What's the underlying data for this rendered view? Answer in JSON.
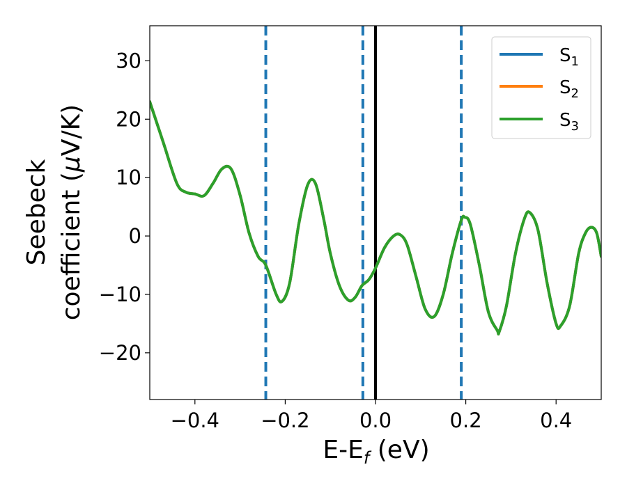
{
  "colors": {
    "s1": "#1f77b4",
    "s2": "#ff7f0e",
    "s3": "#2ca02c",
    "vertical_dashed": "#1f77b4",
    "fermi_line": "#000000"
  },
  "chart_data": {
    "type": "line",
    "title": "",
    "xlabel_main": "E-E",
    "xlabel_sub": "f",
    "xlabel_tail": " (eV)",
    "ylabel_line1": "Seebeck",
    "ylabel_line2": "coefficient  (",
    "ylabel_mu": "μ",
    "ylabel_tail": "V/K)",
    "xlim": [
      -0.5,
      0.5
    ],
    "ylim": [
      -28,
      36
    ],
    "xticks": [
      -0.4,
      -0.2,
      0.0,
      0.2,
      0.4
    ],
    "xtick_labels": [
      "−0.4",
      "−0.2",
      "0.0",
      "0.2",
      "0.4"
    ],
    "yticks": [
      -20,
      -10,
      0,
      10,
      20,
      30
    ],
    "ytick_labels": [
      "−20",
      "−10",
      "0",
      "10",
      "20",
      "30"
    ],
    "grid": false,
    "legend_position": "top-right",
    "legend": [
      {
        "main": "S",
        "sub": "1"
      },
      {
        "main": "S",
        "sub": "2"
      },
      {
        "main": "S",
        "sub": "3"
      }
    ],
    "vertical_dashed_lines": [
      -0.243,
      -0.028,
      0.19
    ],
    "vertical_solid_line": 0.0,
    "series": [
      {
        "name": "S1",
        "x": [
          -0.5,
          -0.47,
          -0.44,
          -0.42,
          -0.4,
          -0.38,
          -0.36,
          -0.34,
          -0.32,
          -0.3,
          -0.28,
          -0.26,
          -0.243,
          -0.22,
          -0.207,
          -0.19,
          -0.17,
          -0.15,
          -0.133,
          -0.115,
          -0.1,
          -0.08,
          -0.06,
          -0.045,
          -0.03,
          -0.015,
          0.0,
          0.02,
          0.04,
          0.055,
          0.07,
          0.09,
          0.11,
          0.13,
          0.15,
          0.17,
          0.19,
          0.198,
          0.21,
          0.23,
          0.25,
          0.27,
          0.274,
          0.29,
          0.31,
          0.33,
          0.342,
          0.36,
          0.38,
          0.4,
          0.41,
          0.43,
          0.45,
          0.465,
          0.478,
          0.49,
          0.5
        ],
        "y": [
          23,
          16,
          9,
          7.5,
          7.2,
          6.9,
          9,
          11.5,
          11.5,
          7,
          0.5,
          -3.5,
          -5,
          -10,
          -11.2,
          -8,
          2,
          8.8,
          9,
          3,
          -3,
          -8.5,
          -11,
          -10.5,
          -8.5,
          -7.5,
          -5.5,
          -2,
          0,
          0.2,
          -1.5,
          -7,
          -12.5,
          -13.8,
          -10,
          -3,
          2.7,
          3.2,
          2,
          -5,
          -13,
          -16.2,
          -16.4,
          -12,
          -3,
          3,
          4,
          1,
          -8,
          -15,
          -15.4,
          -12,
          -3,
          0.5,
          1.5,
          0.5,
          -3.5
        ]
      },
      {
        "name": "S2",
        "x": [
          -0.5,
          -0.47,
          -0.44,
          -0.42,
          -0.4,
          -0.38,
          -0.36,
          -0.34,
          -0.32,
          -0.3,
          -0.28,
          -0.26,
          -0.243,
          -0.22,
          -0.207,
          -0.19,
          -0.17,
          -0.15,
          -0.133,
          -0.115,
          -0.1,
          -0.08,
          -0.06,
          -0.045,
          -0.03,
          -0.015,
          0.0,
          0.02,
          0.04,
          0.055,
          0.07,
          0.09,
          0.11,
          0.13,
          0.15,
          0.17,
          0.19,
          0.198,
          0.21,
          0.23,
          0.25,
          0.27,
          0.274,
          0.29,
          0.31,
          0.33,
          0.342,
          0.36,
          0.38,
          0.4,
          0.41,
          0.43,
          0.45,
          0.465,
          0.478,
          0.49,
          0.5
        ],
        "y": [
          23,
          16,
          9,
          7.5,
          7.2,
          6.9,
          9,
          11.5,
          11.5,
          7,
          0.5,
          -3.5,
          -5,
          -10,
          -11.2,
          -8,
          2,
          8.8,
          9,
          3,
          -3,
          -8.5,
          -11,
          -10.5,
          -8.5,
          -7.5,
          -5.5,
          -2,
          0,
          0.2,
          -1.5,
          -7,
          -12.5,
          -13.8,
          -10,
          -3,
          2.7,
          3.2,
          2,
          -5,
          -13,
          -16.2,
          -16.4,
          -12,
          -3,
          3,
          4,
          1,
          -8,
          -15,
          -15.4,
          -12,
          -3,
          0.5,
          1.5,
          0.5,
          -3.5
        ]
      },
      {
        "name": "S3",
        "x": [
          -0.5,
          -0.47,
          -0.44,
          -0.42,
          -0.4,
          -0.38,
          -0.36,
          -0.34,
          -0.32,
          -0.3,
          -0.28,
          -0.26,
          -0.243,
          -0.22,
          -0.207,
          -0.19,
          -0.17,
          -0.15,
          -0.133,
          -0.115,
          -0.1,
          -0.08,
          -0.06,
          -0.045,
          -0.03,
          -0.015,
          0.0,
          0.02,
          0.04,
          0.055,
          0.07,
          0.09,
          0.11,
          0.13,
          0.15,
          0.17,
          0.19,
          0.198,
          0.21,
          0.23,
          0.25,
          0.27,
          0.274,
          0.29,
          0.31,
          0.33,
          0.342,
          0.36,
          0.38,
          0.4,
          0.41,
          0.43,
          0.45,
          0.465,
          0.478,
          0.49,
          0.5
        ],
        "y": [
          23,
          16,
          9,
          7.5,
          7.2,
          6.9,
          9,
          11.5,
          11.5,
          7,
          0.5,
          -3.5,
          -5,
          -10,
          -11.2,
          -8,
          2,
          8.8,
          9,
          3,
          -3,
          -8.5,
          -11,
          -10.5,
          -8.5,
          -7.5,
          -5.5,
          -2,
          0,
          0.2,
          -1.5,
          -7,
          -12.5,
          -13.8,
          -10,
          -3,
          2.7,
          3.2,
          2,
          -5,
          -13,
          -16.2,
          -16.4,
          -12,
          -3,
          3,
          4,
          1,
          -8,
          -15,
          -15.4,
          -12,
          -3,
          0.5,
          1.5,
          0.5,
          -3.5
        ]
      }
    ]
  }
}
